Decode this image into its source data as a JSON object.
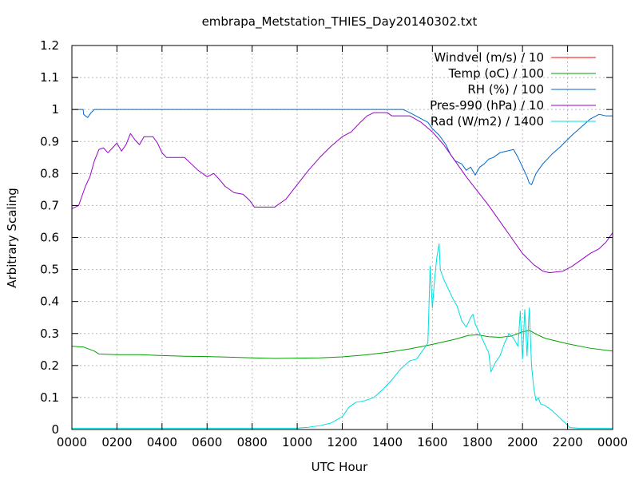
{
  "chart_data": {
    "type": "line",
    "title": "embrapa_Metstation_THIES_Day20140302.txt",
    "xlabel": "UTC Hour",
    "ylabel": "Arbitrary Scaling",
    "xlim": [
      0,
      24
    ],
    "ylim": [
      0,
      1.2
    ],
    "grid": true,
    "legend_position": "top-right",
    "x_ticks": [
      {
        "value": 0,
        "label": "0000"
      },
      {
        "value": 2,
        "label": "0200"
      },
      {
        "value": 4,
        "label": "0400"
      },
      {
        "value": 6,
        "label": "0600"
      },
      {
        "value": 8,
        "label": "0800"
      },
      {
        "value": 10,
        "label": "1000"
      },
      {
        "value": 12,
        "label": "1200"
      },
      {
        "value": 14,
        "label": "1400"
      },
      {
        "value": 16,
        "label": "1600"
      },
      {
        "value": 18,
        "label": "1800"
      },
      {
        "value": 20,
        "label": "2000"
      },
      {
        "value": 22,
        "label": "2200"
      },
      {
        "value": 24,
        "label": "0000"
      }
    ],
    "y_ticks": [
      {
        "value": 0,
        "label": "0"
      },
      {
        "value": 0.1,
        "label": "0.1"
      },
      {
        "value": 0.2,
        "label": "0.2"
      },
      {
        "value": 0.3,
        "label": "0.3"
      },
      {
        "value": 0.4,
        "label": "0.4"
      },
      {
        "value": 0.5,
        "label": "0.5"
      },
      {
        "value": 0.6,
        "label": "0.6"
      },
      {
        "value": 0.7,
        "label": "0.7"
      },
      {
        "value": 0.8,
        "label": "0.8"
      },
      {
        "value": 0.9,
        "label": "0.9"
      },
      {
        "value": 1.0,
        "label": "1"
      },
      {
        "value": 1.1,
        "label": "1.1"
      },
      {
        "value": 1.2,
        "label": "1.2"
      }
    ],
    "series": [
      {
        "name": "Windvel (m/s) / 10",
        "color": "#ff0000",
        "points": []
      },
      {
        "name": "Temp (oC) / 100",
        "color": "#00a000",
        "points": [
          [
            0,
            0.26
          ],
          [
            0.5,
            0.258
          ],
          [
            1,
            0.245
          ],
          [
            1.2,
            0.236
          ],
          [
            2,
            0.234
          ],
          [
            3,
            0.234
          ],
          [
            4,
            0.231
          ],
          [
            5,
            0.229
          ],
          [
            6,
            0.228
          ],
          [
            7,
            0.226
          ],
          [
            8,
            0.224
          ],
          [
            9,
            0.222
          ],
          [
            10,
            0.223
          ],
          [
            11,
            0.224
          ],
          [
            12,
            0.227
          ],
          [
            13,
            0.233
          ],
          [
            14,
            0.241
          ],
          [
            15,
            0.252
          ],
          [
            16,
            0.266
          ],
          [
            17,
            0.282
          ],
          [
            17.6,
            0.294
          ],
          [
            18,
            0.296
          ],
          [
            18.5,
            0.29
          ],
          [
            19,
            0.288
          ],
          [
            19.5,
            0.292
          ],
          [
            20,
            0.305
          ],
          [
            20.3,
            0.31
          ],
          [
            20.6,
            0.298
          ],
          [
            21,
            0.285
          ],
          [
            22,
            0.268
          ],
          [
            23,
            0.254
          ],
          [
            24,
            0.245
          ]
        ]
      },
      {
        "name": "RH (%) / 100",
        "color": "#0066cc",
        "points": [
          [
            0,
            1.0
          ],
          [
            0.5,
            1.0
          ],
          [
            0.52,
            0.985
          ],
          [
            0.6,
            0.98
          ],
          [
            0.7,
            0.975
          ],
          [
            0.85,
            0.99
          ],
          [
            1,
            1.0
          ],
          [
            14,
            1.0
          ],
          [
            14.7,
            1.0
          ],
          [
            15,
            0.99
          ],
          [
            15.4,
            0.975
          ],
          [
            15.8,
            0.96
          ],
          [
            16,
            0.94
          ],
          [
            16.3,
            0.92
          ],
          [
            16.6,
            0.89
          ],
          [
            16.8,
            0.86
          ],
          [
            17,
            0.84
          ],
          [
            17.3,
            0.83
          ],
          [
            17.5,
            0.81
          ],
          [
            17.7,
            0.82
          ],
          [
            17.9,
            0.795
          ],
          [
            18.1,
            0.82
          ],
          [
            18.3,
            0.83
          ],
          [
            18.5,
            0.845
          ],
          [
            18.7,
            0.85
          ],
          [
            19,
            0.865
          ],
          [
            19.3,
            0.87
          ],
          [
            19.6,
            0.875
          ],
          [
            19.8,
            0.85
          ],
          [
            20,
            0.82
          ],
          [
            20.2,
            0.79
          ],
          [
            20.3,
            0.77
          ],
          [
            20.4,
            0.765
          ],
          [
            20.6,
            0.8
          ],
          [
            20.9,
            0.83
          ],
          [
            21.3,
            0.86
          ],
          [
            21.7,
            0.885
          ],
          [
            22.2,
            0.92
          ],
          [
            22.6,
            0.945
          ],
          [
            23,
            0.97
          ],
          [
            23.4,
            0.985
          ],
          [
            23.7,
            0.98
          ],
          [
            24,
            0.98
          ]
        ]
      },
      {
        "name": "Pres-990 (hPa) / 10",
        "color": "#9900cc",
        "points": [
          [
            0,
            0.69
          ],
          [
            0.3,
            0.7
          ],
          [
            0.5,
            0.74
          ],
          [
            0.6,
            0.76
          ],
          [
            0.8,
            0.79
          ],
          [
            1,
            0.84
          ],
          [
            1.2,
            0.875
          ],
          [
            1.4,
            0.88
          ],
          [
            1.6,
            0.865
          ],
          [
            1.8,
            0.88
          ],
          [
            2.0,
            0.895
          ],
          [
            2.2,
            0.87
          ],
          [
            2.4,
            0.89
          ],
          [
            2.6,
            0.925
          ],
          [
            2.8,
            0.905
          ],
          [
            3.0,
            0.89
          ],
          [
            3.2,
            0.915
          ],
          [
            3.6,
            0.915
          ],
          [
            3.8,
            0.895
          ],
          [
            4,
            0.865
          ],
          [
            4.2,
            0.85
          ],
          [
            5,
            0.85
          ],
          [
            5.3,
            0.83
          ],
          [
            5.6,
            0.81
          ],
          [
            6,
            0.79
          ],
          [
            6.3,
            0.8
          ],
          [
            6.5,
            0.785
          ],
          [
            6.8,
            0.76
          ],
          [
            7.2,
            0.74
          ],
          [
            7.6,
            0.735
          ],
          [
            7.9,
            0.715
          ],
          [
            8.1,
            0.695
          ],
          [
            9,
            0.695
          ],
          [
            9.5,
            0.72
          ],
          [
            10,
            0.765
          ],
          [
            10.5,
            0.81
          ],
          [
            11,
            0.85
          ],
          [
            11.5,
            0.885
          ],
          [
            12,
            0.915
          ],
          [
            12.4,
            0.93
          ],
          [
            12.8,
            0.96
          ],
          [
            13.1,
            0.98
          ],
          [
            13.4,
            0.99
          ],
          [
            14,
            0.99
          ],
          [
            14.2,
            0.98
          ],
          [
            15,
            0.98
          ],
          [
            15.5,
            0.96
          ],
          [
            16,
            0.93
          ],
          [
            16.5,
            0.89
          ],
          [
            17,
            0.84
          ],
          [
            17.5,
            0.79
          ],
          [
            18,
            0.745
          ],
          [
            18.5,
            0.7
          ],
          [
            19,
            0.65
          ],
          [
            19.5,
            0.6
          ],
          [
            20,
            0.55
          ],
          [
            20.5,
            0.515
          ],
          [
            20.9,
            0.495
          ],
          [
            21.2,
            0.49
          ],
          [
            21.8,
            0.495
          ],
          [
            22.2,
            0.51
          ],
          [
            22.6,
            0.53
          ],
          [
            23,
            0.55
          ],
          [
            23.4,
            0.565
          ],
          [
            23.7,
            0.585
          ],
          [
            24,
            0.615
          ]
        ]
      },
      {
        "name": "Rad (W/m2) / 1400",
        "color": "#00dddd",
        "points": [
          [
            0,
            0.004
          ],
          [
            10,
            0.004
          ],
          [
            10.5,
            0.007
          ],
          [
            11,
            0.012
          ],
          [
            11.5,
            0.02
          ],
          [
            12,
            0.04
          ],
          [
            12.3,
            0.07
          ],
          [
            12.6,
            0.085
          ],
          [
            13,
            0.09
          ],
          [
            13.4,
            0.1
          ],
          [
            13.8,
            0.125
          ],
          [
            14.2,
            0.155
          ],
          [
            14.6,
            0.19
          ],
          [
            15,
            0.215
          ],
          [
            15.3,
            0.22
          ],
          [
            15.5,
            0.24
          ],
          [
            15.8,
            0.27
          ],
          [
            15.9,
            0.51
          ],
          [
            16.0,
            0.38
          ],
          [
            16.1,
            0.47
          ],
          [
            16.2,
            0.54
          ],
          [
            16.3,
            0.58
          ],
          [
            16.35,
            0.5
          ],
          [
            16.5,
            0.47
          ],
          [
            16.7,
            0.44
          ],
          [
            16.9,
            0.41
          ],
          [
            17.1,
            0.385
          ],
          [
            17.3,
            0.34
          ],
          [
            17.5,
            0.32
          ],
          [
            17.7,
            0.35
          ],
          [
            17.8,
            0.36
          ],
          [
            17.9,
            0.33
          ],
          [
            18.1,
            0.3
          ],
          [
            18.3,
            0.27
          ],
          [
            18.5,
            0.24
          ],
          [
            18.6,
            0.18
          ],
          [
            18.8,
            0.21
          ],
          [
            19,
            0.23
          ],
          [
            19.2,
            0.27
          ],
          [
            19.4,
            0.3
          ],
          [
            19.6,
            0.285
          ],
          [
            19.8,
            0.26
          ],
          [
            19.9,
            0.37
          ],
          [
            20.0,
            0.22
          ],
          [
            20.1,
            0.375
          ],
          [
            20.2,
            0.23
          ],
          [
            20.3,
            0.38
          ],
          [
            20.4,
            0.2
          ],
          [
            20.5,
            0.13
          ],
          [
            20.6,
            0.09
          ],
          [
            20.7,
            0.1
          ],
          [
            20.8,
            0.08
          ],
          [
            21,
            0.075
          ],
          [
            21.3,
            0.06
          ],
          [
            21.6,
            0.04
          ],
          [
            21.9,
            0.02
          ],
          [
            22.1,
            0.006
          ],
          [
            22.5,
            0.004
          ],
          [
            24,
            0.004
          ]
        ]
      }
    ]
  }
}
